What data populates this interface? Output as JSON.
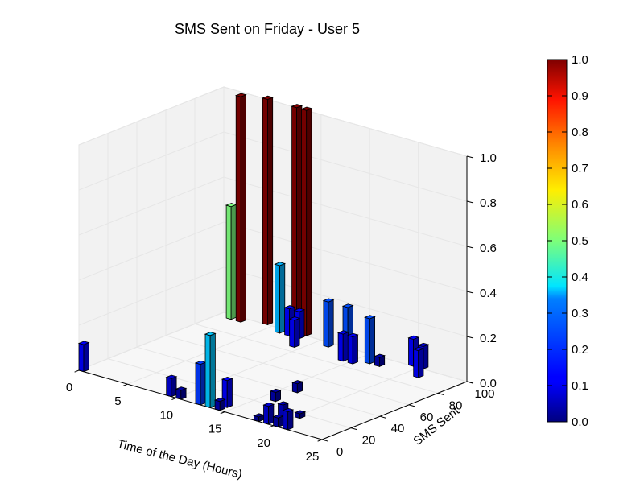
{
  "chart_data": {
    "type": "bar3d",
    "title": "SMS Sent on Friday - User 5",
    "xlabel": "Time of the Day (Hours)",
    "ylabel": "SMS Sent",
    "zlabel": "",
    "xlim": [
      0,
      25
    ],
    "ylim": [
      0,
      100
    ],
    "zlim": [
      0,
      1.0
    ],
    "xticks": [
      "0",
      "5",
      "10",
      "15",
      "20",
      "25"
    ],
    "yticks": [
      "0",
      "20",
      "40",
      "60",
      "80",
      "100"
    ],
    "zticks": [
      "0.0",
      "0.2",
      "0.4",
      "0.6",
      "0.8",
      "1.0"
    ],
    "grid": true,
    "colormap": "jet",
    "colorbar": {
      "min": 0.0,
      "max": 1.0,
      "ticks": [
        "0.0",
        "0.1",
        "0.2",
        "0.3",
        "0.4",
        "0.5",
        "0.6",
        "0.7",
        "0.8",
        "0.9",
        "1.0"
      ]
    },
    "bars": [
      {
        "x": 0,
        "y": 0,
        "z": 0.12
      },
      {
        "x": 9,
        "y": 0,
        "z": 0.08
      },
      {
        "x": 10,
        "y": 0,
        "z": 0.04
      },
      {
        "x": 12,
        "y": 0,
        "z": 0.18
      },
      {
        "x": 13,
        "y": 0,
        "z": 0.32
      },
      {
        "x": 14,
        "y": 0,
        "z": 0.04
      },
      {
        "x": 14,
        "y": 5,
        "z": 0.12
      },
      {
        "x": 18,
        "y": 0,
        "z": 0.02
      },
      {
        "x": 19,
        "y": 0,
        "z": 0.08
      },
      {
        "x": 20,
        "y": 0,
        "z": 0.04
      },
      {
        "x": 21,
        "y": 0,
        "z": 0.08
      },
      {
        "x": 16,
        "y": 25,
        "z": 0.04
      },
      {
        "x": 16,
        "y": 40,
        "z": 0.04
      },
      {
        "x": 19,
        "y": 10,
        "z": 0.06
      },
      {
        "x": 20,
        "y": 15,
        "z": 0.02
      },
      {
        "x": 1,
        "y": 95,
        "z": 0.5
      },
      {
        "x": 2,
        "y": 95,
        "z": 1.0
      },
      {
        "x": 4,
        "y": 100,
        "z": 1.0
      },
      {
        "x": 7,
        "y": 100,
        "z": 1.0
      },
      {
        "x": 8,
        "y": 100,
        "z": 1.0
      },
      {
        "x": 6,
        "y": 95,
        "z": 0.3
      },
      {
        "x": 7,
        "y": 95,
        "z": 0.12
      },
      {
        "x": 8,
        "y": 95,
        "z": 0.12
      },
      {
        "x": 9,
        "y": 85,
        "z": 0.12
      },
      {
        "x": 11,
        "y": 95,
        "z": 0.2
      },
      {
        "x": 13,
        "y": 95,
        "z": 0.2
      },
      {
        "x": 14,
        "y": 85,
        "z": 0.12
      },
      {
        "x": 15,
        "y": 85,
        "z": 0.12
      },
      {
        "x": 16,
        "y": 90,
        "z": 0.2
      },
      {
        "x": 17,
        "y": 90,
        "z": 0.04
      },
      {
        "x": 19,
        "y": 100,
        "z": 0.12
      },
      {
        "x": 20,
        "y": 100,
        "z": 0.1
      },
      {
        "x": 21,
        "y": 90,
        "z": 0.12
      }
    ]
  }
}
